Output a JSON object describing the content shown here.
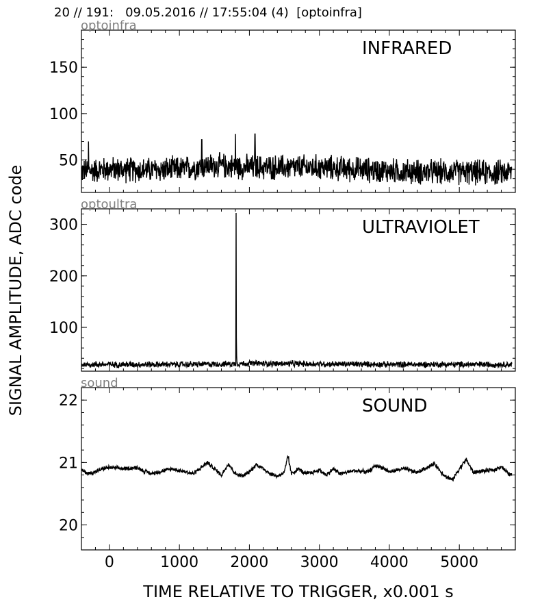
{
  "header": "20 // 191:   09.05.2016 // 17:55:04 (4)  [optoinfra]",
  "ylabel": "SIGNAL AMPLITUDE,  ADC code",
  "xlabel": "TIME RELATIVE TO TRIGGER,   x0.001 s",
  "colors": {
    "trace": "#000000",
    "channel_label": "#808080"
  },
  "chart_data": [
    {
      "type": "line",
      "channel": "optoinfra",
      "title": "INFRARED",
      "xlim": [
        -400,
        5800
      ],
      "ylim": [
        15,
        190
      ],
      "x_ticks": [
        0,
        1000,
        2000,
        3000,
        4000,
        5000
      ],
      "y_ticks": [
        50,
        100,
        150
      ],
      "y_tick_labels": [
        "50",
        "100",
        "150"
      ],
      "series": [
        {
          "x": [
            -400,
            0,
            500,
            1000,
            1300,
            1500,
            1800,
            2000,
            2500,
            3000,
            3500,
            4000,
            4500,
            5000,
            5500,
            5750
          ],
          "y": [
            38,
            40,
            39,
            40,
            43,
            44,
            43,
            42,
            42,
            42,
            40,
            38,
            37,
            37,
            36,
            37
          ],
          "noise": 16,
          "spikes": [
            {
              "x": 1800,
              "y": 78
            },
            {
              "x": 2080,
              "y": 78
            },
            {
              "x": 1320,
              "y": 72
            },
            {
              "x": -300,
              "y": 70
            }
          ]
        }
      ]
    },
    {
      "type": "line",
      "channel": "optoultra",
      "title": "ULTRAVIOLET",
      "xlim": [
        -400,
        5800
      ],
      "ylim": [
        15,
        330
      ],
      "x_ticks": [
        0,
        1000,
        2000,
        3000,
        4000,
        5000
      ],
      "y_ticks": [
        100,
        200,
        300
      ],
      "y_tick_labels": [
        "100",
        "200",
        "300"
      ],
      "series": [
        {
          "x": [
            -400,
            0,
            1000,
            1800,
            2000,
            3000,
            4000,
            5000,
            5750
          ],
          "y": [
            28,
            28,
            28,
            29,
            30,
            29,
            28,
            28,
            28
          ],
          "noise": 7,
          "spikes": [
            {
              "x": 1810,
              "y": 322
            },
            {
              "x": 1815,
              "y": 80
            },
            {
              "x": 1820,
              "y": 45
            }
          ]
        }
      ]
    },
    {
      "type": "line",
      "channel": "sound",
      "title": "SOUND",
      "xlim": [
        -400,
        5800
      ],
      "ylim": [
        19.6,
        22.2
      ],
      "x_ticks": [
        0,
        1000,
        2000,
        3000,
        4000,
        5000
      ],
      "x_tick_labels": [
        "0",
        "1000",
        "2000",
        "3000",
        "4000",
        "5000"
      ],
      "y_ticks": [
        20,
        21,
        22
      ],
      "y_tick_labels": [
        "20",
        "21",
        "22"
      ],
      "series": [
        {
          "x": [
            -400,
            -300,
            -200,
            -100,
            0,
            200,
            400,
            500,
            600,
            700,
            900,
            1100,
            1200,
            1400,
            1500,
            1600,
            1700,
            1800,
            1900,
            2000,
            2100,
            2200,
            2300,
            2400,
            2500,
            2550,
            2600,
            2700,
            2800,
            2900,
            3000,
            3100,
            3200,
            3300,
            3500,
            3700,
            3800,
            3900,
            4000,
            4200,
            4400,
            4500,
            4650,
            4700,
            4800,
            4900,
            5000,
            5100,
            5200,
            5300,
            5500,
            5600,
            5700,
            5750
          ],
          "y": [
            20.88,
            20.82,
            20.85,
            20.9,
            20.92,
            20.9,
            20.92,
            20.86,
            20.82,
            20.85,
            20.9,
            20.85,
            20.82,
            21.0,
            20.9,
            20.8,
            20.98,
            20.82,
            20.78,
            20.85,
            20.97,
            20.9,
            20.82,
            20.78,
            20.84,
            21.1,
            20.82,
            20.9,
            20.82,
            20.84,
            20.88,
            20.8,
            20.9,
            20.82,
            20.87,
            20.85,
            20.95,
            20.92,
            20.85,
            20.9,
            20.84,
            20.9,
            20.98,
            20.9,
            20.78,
            20.72,
            20.9,
            21.05,
            20.84,
            20.86,
            20.88,
            20.94,
            20.82,
            20.8
          ],
          "noise": 0.04,
          "spikes": [
            {
              "x": 2560,
              "y": 21.1
            }
          ]
        }
      ]
    }
  ]
}
